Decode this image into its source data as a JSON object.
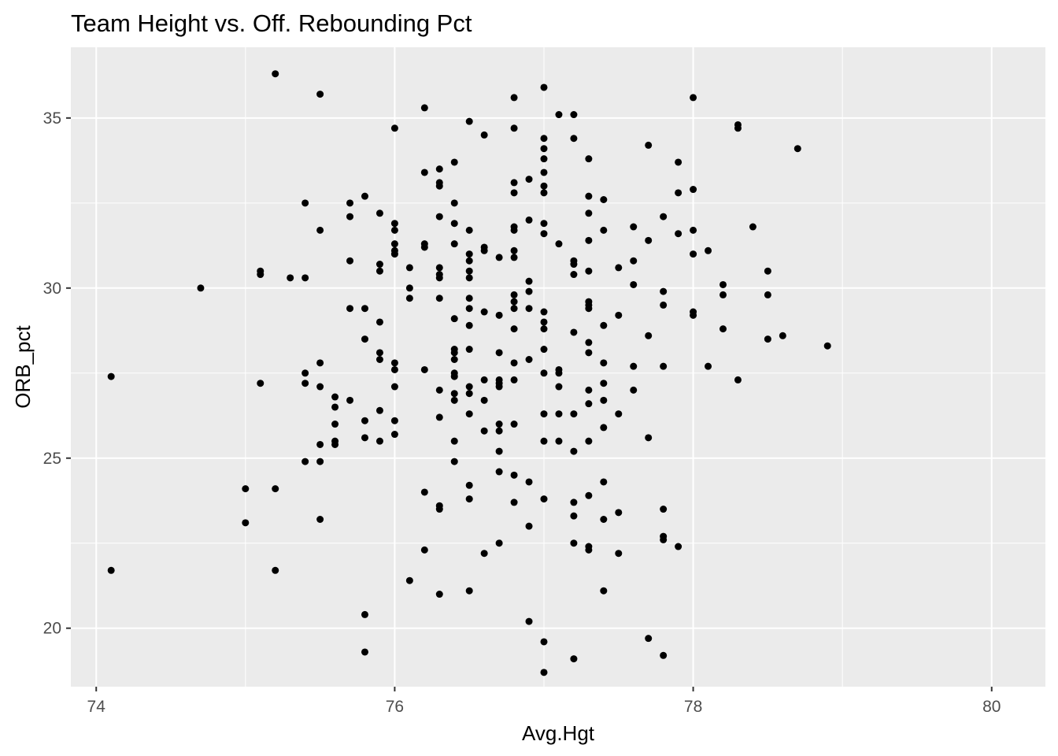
{
  "chart_data": {
    "type": "scatter",
    "title": "Team Height vs. Off. Rebounding Pct",
    "xlabel": "Avg.Hgt",
    "ylabel": "ORB_pct",
    "xlim": [
      73.83,
      80.36
    ],
    "ylim": [
      18.28,
      37.08
    ],
    "x_ticks": [
      74,
      76,
      78,
      80
    ],
    "x_tick_labels": [
      "74",
      "76",
      "78",
      "80"
    ],
    "y_ticks": [
      20,
      25,
      30,
      35
    ],
    "y_tick_labels": [
      "20",
      "25",
      "30",
      "35"
    ],
    "grid": true,
    "legend": "none",
    "colors": {
      "panel": "#ebebeb",
      "grid": "#ffffff",
      "point": "#000000",
      "tick": "#333333",
      "tick_label": "#4d4d4d"
    },
    "points": [
      [
        74.1,
        27.4
      ],
      [
        74.1,
        21.7
      ],
      [
        74.7,
        30.0
      ],
      [
        75.0,
        24.1
      ],
      [
        75.0,
        23.1
      ],
      [
        75.1,
        30.5
      ],
      [
        75.1,
        30.4
      ],
      [
        75.1,
        27.2
      ],
      [
        75.2,
        36.3
      ],
      [
        75.2,
        24.1
      ],
      [
        75.2,
        21.7
      ],
      [
        75.3,
        30.3
      ],
      [
        75.4,
        32.5
      ],
      [
        75.4,
        30.3
      ],
      [
        75.4,
        27.5
      ],
      [
        75.4,
        27.2
      ],
      [
        75.4,
        24.9
      ],
      [
        75.5,
        35.7
      ],
      [
        75.5,
        31.7
      ],
      [
        75.5,
        27.8
      ],
      [
        75.5,
        27.1
      ],
      [
        75.5,
        25.4
      ],
      [
        75.5,
        24.9
      ],
      [
        75.5,
        23.2
      ],
      [
        75.6,
        26.8
      ],
      [
        75.6,
        26.5
      ],
      [
        75.6,
        26.0
      ],
      [
        75.6,
        25.5
      ],
      [
        75.6,
        25.4
      ],
      [
        75.7,
        32.5
      ],
      [
        75.7,
        32.1
      ],
      [
        75.7,
        30.8
      ],
      [
        75.7,
        29.4
      ],
      [
        75.7,
        26.7
      ],
      [
        75.8,
        32.7
      ],
      [
        75.8,
        29.4
      ],
      [
        75.8,
        28.5
      ],
      [
        75.8,
        26.1
      ],
      [
        75.8,
        25.6
      ],
      [
        75.8,
        20.4
      ],
      [
        75.8,
        19.3
      ],
      [
        75.9,
        32.2
      ],
      [
        75.9,
        30.7
      ],
      [
        75.9,
        30.5
      ],
      [
        75.9,
        29.0
      ],
      [
        75.9,
        28.1
      ],
      [
        75.9,
        27.9
      ],
      [
        75.9,
        26.4
      ],
      [
        75.9,
        25.5
      ],
      [
        76.0,
        34.7
      ],
      [
        76.0,
        31.9
      ],
      [
        76.0,
        31.7
      ],
      [
        76.0,
        31.3
      ],
      [
        76.0,
        31.1
      ],
      [
        76.0,
        31.0
      ],
      [
        76.0,
        27.8
      ],
      [
        76.0,
        27.6
      ],
      [
        76.0,
        27.1
      ],
      [
        76.0,
        26.1
      ],
      [
        76.0,
        25.7
      ],
      [
        76.1,
        30.6
      ],
      [
        76.1,
        30.0
      ],
      [
        76.1,
        29.7
      ],
      [
        76.1,
        21.4
      ],
      [
        76.2,
        35.3
      ],
      [
        76.2,
        33.4
      ],
      [
        76.2,
        31.3
      ],
      [
        76.2,
        31.2
      ],
      [
        76.2,
        27.6
      ],
      [
        76.2,
        24.0
      ],
      [
        76.2,
        22.3
      ],
      [
        76.3,
        33.5
      ],
      [
        76.3,
        33.1
      ],
      [
        76.3,
        33.0
      ],
      [
        76.3,
        32.1
      ],
      [
        76.3,
        30.6
      ],
      [
        76.3,
        30.4
      ],
      [
        76.3,
        30.3
      ],
      [
        76.3,
        29.7
      ],
      [
        76.3,
        27.0
      ],
      [
        76.3,
        26.2
      ],
      [
        76.3,
        23.6
      ],
      [
        76.3,
        23.5
      ],
      [
        76.3,
        21.0
      ],
      [
        76.4,
        33.7
      ],
      [
        76.4,
        32.5
      ],
      [
        76.4,
        31.9
      ],
      [
        76.4,
        31.3
      ],
      [
        76.4,
        29.1
      ],
      [
        76.4,
        28.2
      ],
      [
        76.4,
        28.1
      ],
      [
        76.4,
        27.9
      ],
      [
        76.4,
        27.5
      ],
      [
        76.4,
        27.4
      ],
      [
        76.4,
        26.9
      ],
      [
        76.4,
        26.7
      ],
      [
        76.4,
        25.5
      ],
      [
        76.4,
        24.9
      ],
      [
        76.5,
        34.9
      ],
      [
        76.5,
        31.7
      ],
      [
        76.5,
        31.0
      ],
      [
        76.5,
        30.8
      ],
      [
        76.5,
        30.5
      ],
      [
        76.5,
        30.3
      ],
      [
        76.5,
        29.7
      ],
      [
        76.5,
        29.4
      ],
      [
        76.5,
        28.9
      ],
      [
        76.5,
        28.2
      ],
      [
        76.5,
        27.1
      ],
      [
        76.5,
        26.9
      ],
      [
        76.5,
        26.3
      ],
      [
        76.5,
        24.2
      ],
      [
        76.5,
        23.8
      ],
      [
        76.5,
        21.1
      ],
      [
        76.6,
        34.5
      ],
      [
        76.6,
        31.2
      ],
      [
        76.6,
        31.1
      ],
      [
        76.6,
        29.3
      ],
      [
        76.6,
        27.3
      ],
      [
        76.6,
        26.7
      ],
      [
        76.6,
        25.8
      ],
      [
        76.6,
        22.2
      ],
      [
        76.7,
        30.9
      ],
      [
        76.7,
        29.2
      ],
      [
        76.7,
        28.1
      ],
      [
        76.7,
        27.3
      ],
      [
        76.7,
        27.2
      ],
      [
        76.7,
        27.1
      ],
      [
        76.7,
        26.0
      ],
      [
        76.7,
        25.8
      ],
      [
        76.7,
        25.2
      ],
      [
        76.7,
        24.6
      ],
      [
        76.7,
        22.5
      ],
      [
        76.8,
        35.6
      ],
      [
        76.8,
        34.7
      ],
      [
        76.8,
        33.1
      ],
      [
        76.8,
        32.8
      ],
      [
        76.8,
        31.8
      ],
      [
        76.8,
        31.7
      ],
      [
        76.8,
        31.1
      ],
      [
        76.8,
        30.9
      ],
      [
        76.8,
        29.8
      ],
      [
        76.8,
        29.6
      ],
      [
        76.8,
        29.4
      ],
      [
        76.8,
        28.8
      ],
      [
        76.8,
        27.8
      ],
      [
        76.8,
        27.3
      ],
      [
        76.8,
        26.0
      ],
      [
        76.8,
        24.5
      ],
      [
        76.8,
        23.7
      ],
      [
        76.9,
        33.2
      ],
      [
        76.9,
        32.0
      ],
      [
        76.9,
        30.2
      ],
      [
        76.9,
        29.9
      ],
      [
        76.9,
        29.4
      ],
      [
        76.9,
        27.9
      ],
      [
        76.9,
        24.3
      ],
      [
        76.9,
        23.0
      ],
      [
        76.9,
        20.2
      ],
      [
        77.0,
        35.9
      ],
      [
        77.0,
        34.4
      ],
      [
        77.0,
        34.1
      ],
      [
        77.0,
        33.8
      ],
      [
        77.0,
        33.4
      ],
      [
        77.0,
        33.0
      ],
      [
        77.0,
        32.8
      ],
      [
        77.0,
        31.9
      ],
      [
        77.0,
        31.6
      ],
      [
        77.0,
        29.3
      ],
      [
        77.0,
        29.0
      ],
      [
        77.0,
        28.8
      ],
      [
        77.0,
        28.2
      ],
      [
        77.0,
        27.5
      ],
      [
        77.0,
        26.3
      ],
      [
        77.0,
        25.5
      ],
      [
        77.0,
        23.8
      ],
      [
        77.0,
        19.6
      ],
      [
        77.0,
        18.7
      ],
      [
        77.1,
        35.1
      ],
      [
        77.1,
        31.3
      ],
      [
        77.1,
        27.6
      ],
      [
        77.1,
        27.5
      ],
      [
        77.1,
        27.1
      ],
      [
        77.1,
        26.3
      ],
      [
        77.1,
        25.5
      ],
      [
        77.2,
        35.1
      ],
      [
        77.2,
        34.4
      ],
      [
        77.2,
        30.8
      ],
      [
        77.2,
        30.7
      ],
      [
        77.2,
        30.4
      ],
      [
        77.2,
        28.7
      ],
      [
        77.2,
        26.3
      ],
      [
        77.2,
        25.2
      ],
      [
        77.2,
        23.7
      ],
      [
        77.2,
        23.3
      ],
      [
        77.2,
        22.5
      ],
      [
        77.2,
        19.1
      ],
      [
        77.3,
        33.8
      ],
      [
        77.3,
        32.7
      ],
      [
        77.3,
        32.2
      ],
      [
        77.3,
        31.4
      ],
      [
        77.3,
        30.5
      ],
      [
        77.3,
        29.6
      ],
      [
        77.3,
        29.5
      ],
      [
        77.3,
        29.4
      ],
      [
        77.3,
        28.4
      ],
      [
        77.3,
        28.1
      ],
      [
        77.3,
        27.0
      ],
      [
        77.3,
        26.6
      ],
      [
        77.3,
        25.5
      ],
      [
        77.3,
        23.9
      ],
      [
        77.3,
        22.4
      ],
      [
        77.3,
        22.3
      ],
      [
        77.4,
        32.6
      ],
      [
        77.4,
        31.7
      ],
      [
        77.4,
        28.9
      ],
      [
        77.4,
        27.8
      ],
      [
        77.4,
        27.2
      ],
      [
        77.4,
        26.7
      ],
      [
        77.4,
        25.9
      ],
      [
        77.4,
        24.3
      ],
      [
        77.4,
        23.2
      ],
      [
        77.4,
        21.1
      ],
      [
        77.5,
        30.6
      ],
      [
        77.5,
        29.2
      ],
      [
        77.5,
        26.3
      ],
      [
        77.5,
        23.4
      ],
      [
        77.5,
        22.2
      ],
      [
        77.6,
        31.8
      ],
      [
        77.6,
        30.8
      ],
      [
        77.6,
        30.1
      ],
      [
        77.6,
        27.7
      ],
      [
        77.6,
        27.0
      ],
      [
        77.7,
        34.2
      ],
      [
        77.7,
        31.4
      ],
      [
        77.7,
        28.6
      ],
      [
        77.7,
        25.6
      ],
      [
        77.7,
        19.7
      ],
      [
        77.8,
        32.1
      ],
      [
        77.8,
        29.9
      ],
      [
        77.8,
        29.5
      ],
      [
        77.8,
        27.7
      ],
      [
        77.8,
        23.5
      ],
      [
        77.8,
        22.7
      ],
      [
        77.8,
        22.6
      ],
      [
        77.8,
        19.2
      ],
      [
        77.9,
        33.7
      ],
      [
        77.9,
        32.8
      ],
      [
        77.9,
        31.6
      ],
      [
        77.9,
        22.4
      ],
      [
        78.0,
        35.6
      ],
      [
        78.0,
        32.9
      ],
      [
        78.0,
        31.7
      ],
      [
        78.0,
        31.0
      ],
      [
        78.0,
        29.3
      ],
      [
        78.0,
        29.2
      ],
      [
        78.1,
        31.1
      ],
      [
        78.1,
        27.7
      ],
      [
        78.2,
        30.1
      ],
      [
        78.2,
        29.8
      ],
      [
        78.2,
        28.8
      ],
      [
        78.3,
        34.8
      ],
      [
        78.3,
        34.7
      ],
      [
        78.3,
        27.3
      ],
      [
        78.4,
        31.8
      ],
      [
        78.5,
        30.5
      ],
      [
        78.5,
        29.8
      ],
      [
        78.5,
        28.5
      ],
      [
        78.6,
        28.6
      ],
      [
        78.7,
        34.1
      ],
      [
        78.9,
        28.3
      ]
    ]
  }
}
